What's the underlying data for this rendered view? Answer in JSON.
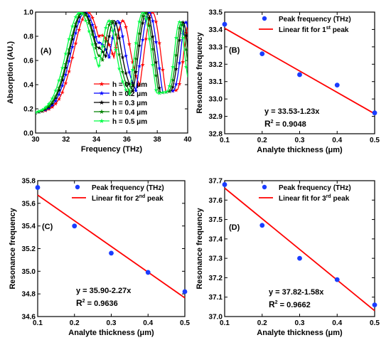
{
  "chart_data": [
    {
      "type": "line",
      "panel_label": "(A)",
      "xlabel": "Frequency (THz)",
      "ylabel": "Absorption (AU.)",
      "xlim": [
        30,
        40
      ],
      "ylim": [
        0.0,
        1.0
      ],
      "xticks": [
        "30",
        "32",
        "34",
        "36",
        "38",
        "40"
      ],
      "yticks": [
        "0.0",
        "0.2",
        "0.4",
        "0.6",
        "0.8",
        "1.0"
      ],
      "legend_position": "center-right",
      "series": [
        {
          "name": "h = 0.1 μm",
          "color": "#ff0000",
          "peaks": [
            33.43,
            35.74,
            37.68
          ],
          "dips": [
            34.6,
            36.7
          ],
          "dip_levels": [
            0.86,
            0.52
          ],
          "x": [
            30,
            40
          ]
        },
        {
          "name": "h = 0.2 μm",
          "color": "#0000ff",
          "peaks": [
            33.26,
            35.4,
            37.47
          ],
          "dips": [
            34.4,
            36.5
          ],
          "dip_levels": [
            0.8,
            0.5
          ],
          "x": [
            30,
            40
          ]
        },
        {
          "name": "h = 0.3 μm",
          "color": "#000000",
          "peaks": [
            33.14,
            35.16,
            37.3
          ],
          "dips": [
            34.2,
            36.3
          ],
          "dip_levels": [
            0.76,
            0.5
          ],
          "x": [
            30,
            40
          ]
        },
        {
          "name": "h = 0.4 μm",
          "color": "#008000",
          "peaks": [
            33.08,
            34.99,
            37.19
          ],
          "dips": [
            34.1,
            36.1
          ],
          "dip_levels": [
            0.7,
            0.48
          ],
          "x": [
            30,
            40
          ]
        },
        {
          "name": "h = 0.5 μm",
          "color": "#00ff44",
          "peaks": [
            32.92,
            34.82,
            37.06
          ],
          "dips": [
            33.9,
            35.9
          ],
          "dip_levels": [
            0.62,
            0.48
          ],
          "x": [
            30,
            40
          ]
        }
      ]
    },
    {
      "type": "scatter",
      "panel_label": "(B)",
      "xlabel": "Analyte thickness (μm)",
      "ylabel": "Resonance frequency",
      "xlim": [
        0.1,
        0.5
      ],
      "ylim": [
        32.8,
        33.5
      ],
      "xticks": [
        "0.1",
        "0.2",
        "0.3",
        "0.4",
        "0.5"
      ],
      "yticks": [
        "32.8",
        "32.9",
        "33.0",
        "33.1",
        "33.2",
        "33.3",
        "33.4",
        "33.5"
      ],
      "x": [
        0.1,
        0.2,
        0.3,
        0.4,
        0.5
      ],
      "y": [
        33.43,
        33.26,
        33.14,
        33.08,
        32.92
      ],
      "fit": {
        "intercept": 33.53,
        "slope": -1.23
      },
      "legend": {
        "points": "Peak frequency (THz)",
        "fit_prefix": "Linear fit for 1",
        "fit_sup": "st",
        "fit_suffix": " peak"
      },
      "equation": "y = 33.53-1.23x",
      "r2_label": "R",
      "r2_sup": "2",
      "r2_value": " = 0.9048"
    },
    {
      "type": "scatter",
      "panel_label": "(C)",
      "xlabel": "Analyte thickness (μm)",
      "ylabel": "Resonance frequency",
      "xlim": [
        0.1,
        0.5
      ],
      "ylim": [
        34.6,
        35.8
      ],
      "xticks": [
        "0.1",
        "0.2",
        "0.3",
        "0.4",
        "0.5"
      ],
      "yticks": [
        "34.6",
        "34.8",
        "35.0",
        "35.2",
        "35.4",
        "35.6",
        "35.8"
      ],
      "x": [
        0.1,
        0.2,
        0.3,
        0.4,
        0.5
      ],
      "y": [
        35.74,
        35.4,
        35.16,
        34.99,
        34.82
      ],
      "fit": {
        "intercept": 35.9,
        "slope": -2.27
      },
      "legend": {
        "points": "Peak frequency (THz)",
        "fit_prefix": "Linear fit for 2",
        "fit_sup": "nd",
        "fit_suffix": " peak"
      },
      "equation": "y = 35.90-2.27x",
      "r2_label": "R",
      "r2_sup": "2",
      "r2_value": " = 0.9636"
    },
    {
      "type": "scatter",
      "panel_label": "(D)",
      "xlabel": "Analyte thickness (μm)",
      "ylabel": "Resonance frequency",
      "xlim": [
        0.1,
        0.5
      ],
      "ylim": [
        37.0,
        37.7
      ],
      "xticks": [
        "0.1",
        "0.2",
        "0.3",
        "0.4",
        "0.5"
      ],
      "yticks": [
        "37.0",
        "37.1",
        "37.2",
        "37.3",
        "37.4",
        "37.5",
        "37.6",
        "37.7"
      ],
      "x": [
        0.1,
        0.2,
        0.3,
        0.4,
        0.5
      ],
      "y": [
        37.68,
        37.47,
        37.3,
        37.19,
        37.06
      ],
      "fit": {
        "intercept": 37.82,
        "slope": -1.58
      },
      "legend": {
        "points": "Peak frequency (THz)",
        "fit_prefix": "Linear fit for 3",
        "fit_sup": "rd",
        "fit_suffix": " peak"
      },
      "equation": "y = 37.82-1.58x",
      "r2_label": "R",
      "r2_sup": "2",
      "r2_value": " = 0.9662"
    }
  ],
  "colors": {
    "points": "#1a3cff",
    "fit": "#ff0000",
    "axis": "#000000"
  }
}
